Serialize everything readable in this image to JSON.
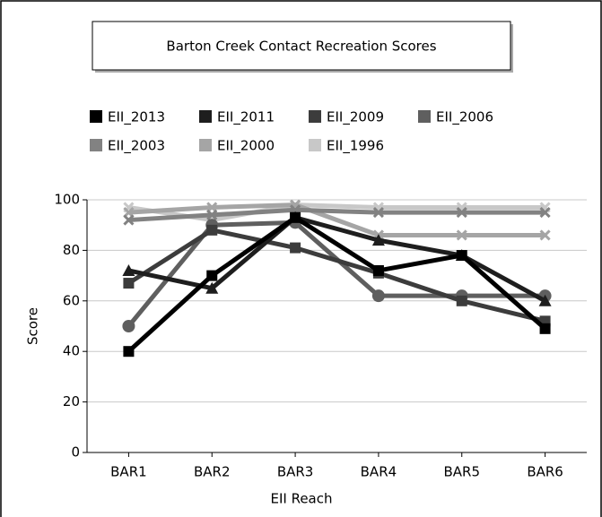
{
  "chart_data": {
    "type": "line",
    "title": "Barton Creek Contact Recreation Scores",
    "x_label": "EII Reach",
    "y_label": "Score",
    "categories": [
      "BAR1",
      "BAR2",
      "BAR3",
      "BAR4",
      "BAR5",
      "BAR6"
    ],
    "series": [
      {
        "name": "EII_2013",
        "color": "#000000",
        "marker": "square",
        "values": [
          40,
          70,
          93,
          72,
          78,
          49
        ]
      },
      {
        "name": "EII_2011",
        "color": "#1e1e1e",
        "marker": "triangle",
        "values": [
          72,
          65,
          93,
          84,
          78,
          60
        ]
      },
      {
        "name": "EII_2009",
        "color": "#3c3c3c",
        "marker": "square",
        "values": [
          67,
          88,
          81,
          71,
          60,
          52
        ]
      },
      {
        "name": "EII_2006",
        "color": "#5f5f5f",
        "marker": "circle",
        "values": [
          50,
          90,
          91,
          62,
          62,
          62
        ]
      },
      {
        "name": "EII_2003",
        "color": "#828282",
        "marker": "x",
        "values": [
          92,
          94,
          96,
          95,
          95,
          95
        ]
      },
      {
        "name": "EII_2000",
        "color": "#a5a5a5",
        "marker": "x",
        "values": [
          95,
          97,
          98,
          86,
          86,
          86
        ]
      },
      {
        "name": "EII_1996",
        "color": "#c8c8c8",
        "marker": "x",
        "values": [
          97,
          92,
          98,
          97,
          97,
          97
        ]
      }
    ],
    "ylim": [
      0,
      100
    ],
    "yticks": [
      0,
      20,
      40,
      60,
      80,
      100
    ],
    "grid": true
  }
}
